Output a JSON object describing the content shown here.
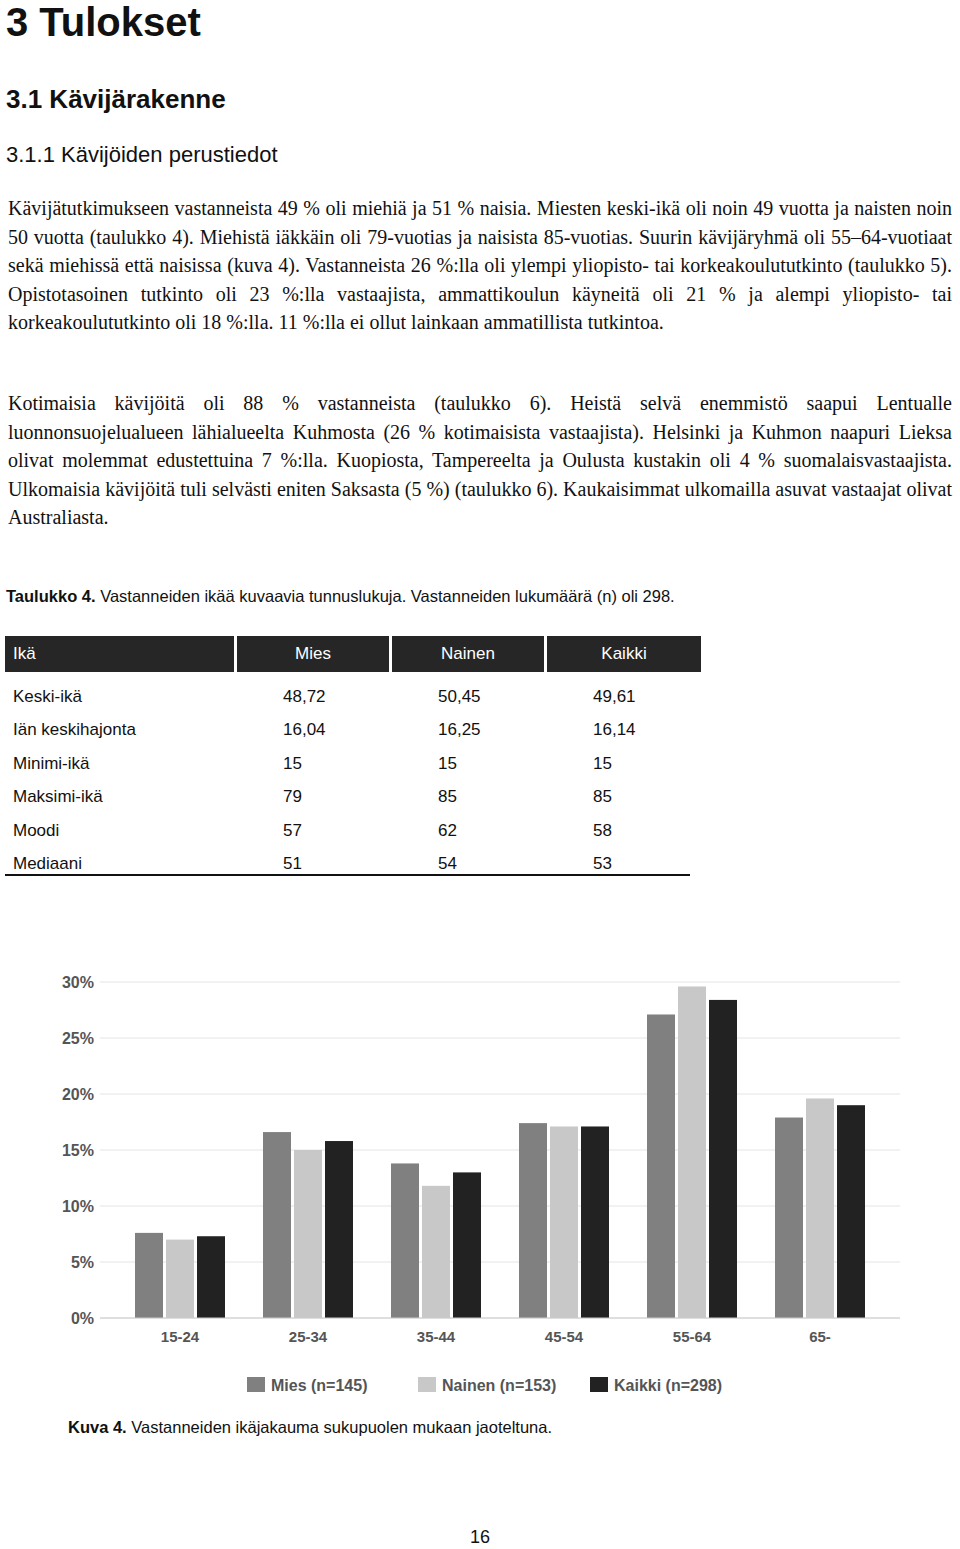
{
  "document": {
    "headings": [
      "3 Tulokset",
      "3.1 Kävijärakenne",
      "3.1.1 Kävijöiden perustiedot"
    ],
    "paragraphs": [
      "Kävijätutkimukseen vastanneista 49 % oli miehiä ja 51 % naisia. Miesten keski-ikä oli noin 49 vuotta ja naisten noin 50 vuotta (taulukko 4). Miehistä iäkkäin oli 79-vuotias ja naisista 85-vuotias. Suurin kävijäryhmä oli 55–64-vuotiaat sekä miehissä että naisissa (kuva 4). Vastanneista 26 %:lla oli ylempi yliopisto- tai korkeakoulututkinto (taulukko 5). Opistotasoinen tutkinto oli 23 %:lla vastaajista, ammattikoulun käyneitä oli 21 % ja alempi yliopisto- tai korkeakoulututkinto oli 18 %:lla. 11 %:lla ei ollut lainkaan ammatillista tutkintoa.",
      "Kotimaisia kävijöitä oli 88 % vastanneista (taulukko 6). Heistä selvä enemmistö saapui Lentualle luonnonsuojelualueen lähialueelta Kuhmosta (26 % kotimaisista vastaajista). Helsinki ja Kuhmon naapuri Lieksa olivat molemmat edustettuina 7 %:lla. Kuopiosta, Tampereelta ja Oulusta kustakin oli 4 % suomalaisvastaajista. Ulkomaisia kävijöitä tuli selvästi eniten Saksasta (5 %) (taulukko 6). Kaukaisimmat ulkomailla asuvat vastaajat olivat Australiasta."
    ],
    "table_caption": {
      "label": "Taulukko 4.",
      "text": "Vastanneiden ikää kuvaavia tunnuslukuja. Vastanneiden lukumäärä (n) oli 298."
    },
    "table": {
      "header": [
        "Ikä",
        "Mies",
        "Nainen",
        "Kaikki"
      ],
      "rows": [
        [
          "Keski-ikä",
          "48,72",
          "50,45",
          "49,61"
        ],
        [
          "Iän keskihajonta",
          "16,04",
          "16,25",
          "16,14"
        ],
        [
          "Minimi-ikä",
          "15",
          "15",
          "15"
        ],
        [
          "Maksimi-ikä",
          "79",
          "85",
          "85"
        ],
        [
          "Moodi",
          "57",
          "62",
          "58"
        ],
        [
          "Mediaani",
          "51",
          "54",
          "53"
        ]
      ]
    },
    "figure_caption": {
      "label": "Kuva 4.",
      "text": "Vastanneiden ikäjakauma sukupuolen mukaan jaoteltuna."
    },
    "page_number": "16"
  },
  "chart_data": {
    "type": "bar",
    "categories": [
      "15-24",
      "25-34",
      "35-44",
      "45-54",
      "55-64",
      "65-"
    ],
    "series": [
      {
        "name": "Mies (n=145)",
        "color": "#808080",
        "values": [
          7.6,
          16.6,
          13.8,
          17.4,
          27.1,
          17.9
        ]
      },
      {
        "name": "Nainen (n=153)",
        "color": "#c8c8c8",
        "values": [
          7.0,
          15.0,
          11.8,
          17.1,
          29.6,
          19.6
        ]
      },
      {
        "name": "Kaikki (n=298)",
        "color": "#222222",
        "values": [
          7.3,
          15.8,
          13.0,
          17.1,
          28.4,
          19.0
        ]
      }
    ],
    "ylim": [
      0,
      30
    ],
    "yticks": [
      {
        "value": 0,
        "label": "0%"
      },
      {
        "value": 5,
        "label": "5%"
      },
      {
        "value": 10,
        "label": "10%"
      },
      {
        "value": 15,
        "label": "15%"
      },
      {
        "value": 20,
        "label": "20%"
      },
      {
        "value": 25,
        "label": "25%"
      },
      {
        "value": 30,
        "label": "30%"
      }
    ],
    "grid": true,
    "legend": "bottom"
  }
}
